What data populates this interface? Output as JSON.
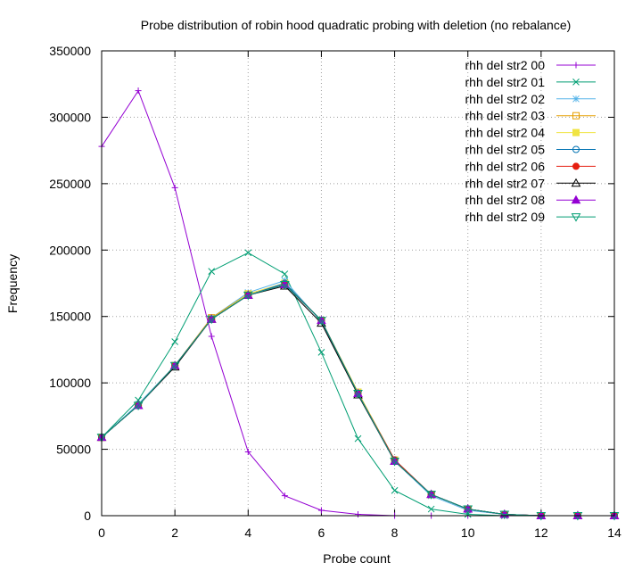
{
  "chart_data": {
    "type": "line",
    "title": "Probe distribution of robin hood quadratic probing with deletion (no rebalance)",
    "xlabel": "Probe count",
    "ylabel": "Frequency",
    "xlim": [
      0,
      14
    ],
    "ylim": [
      0,
      350000
    ],
    "xticks": [
      "0",
      "2",
      "4",
      "6",
      "8",
      "10",
      "12",
      "14"
    ],
    "yticks": [
      "0",
      "50000",
      "100000",
      "150000",
      "200000",
      "250000",
      "300000",
      "350000"
    ],
    "grid": true,
    "legend_position": "top-right",
    "x": [
      0,
      1,
      2,
      3,
      4,
      5,
      6,
      7,
      8,
      9,
      10,
      11,
      12,
      13,
      14
    ],
    "series": [
      {
        "name": "rhh del str2 00",
        "color": "#9400d3",
        "marker": "plus",
        "values": [
          278000,
          320000,
          247000,
          135000,
          48000,
          15000,
          4000,
          1000,
          0,
          0,
          0,
          0,
          0,
          0,
          0
        ]
      },
      {
        "name": "rhh del str2 01",
        "color": "#009e73",
        "marker": "cross",
        "values": [
          59000,
          87000,
          131000,
          184000,
          198000,
          182000,
          123000,
          58000,
          19000,
          5000,
          1000,
          0,
          0,
          0,
          0
        ]
      },
      {
        "name": "rhh del str2 02",
        "color": "#56b4e9",
        "marker": "star",
        "values": [
          59000,
          84000,
          113000,
          149000,
          168000,
          177000,
          146000,
          92000,
          41000,
          15000,
          4000,
          1000,
          0,
          0,
          0
        ]
      },
      {
        "name": "rhh del str2 03",
        "color": "#e69f00",
        "marker": "square",
        "values": [
          59000,
          83000,
          113000,
          149000,
          167000,
          175000,
          147000,
          93000,
          42000,
          16000,
          5000,
          1000,
          0,
          0,
          0
        ]
      },
      {
        "name": "rhh del str2 04",
        "color": "#f0e442",
        "marker": "filled-square",
        "values": [
          59000,
          83000,
          113000,
          148000,
          167000,
          175000,
          147000,
          93000,
          42000,
          16000,
          5000,
          1000,
          0,
          0,
          0
        ]
      },
      {
        "name": "rhh del str2 05",
        "color": "#0072b2",
        "marker": "circle",
        "values": [
          59000,
          83000,
          113000,
          148000,
          166000,
          175000,
          147000,
          92000,
          42000,
          16000,
          5000,
          1000,
          0,
          0,
          0
        ]
      },
      {
        "name": "rhh del str2 06",
        "color": "#e51e10",
        "marker": "filled-circle",
        "values": [
          59000,
          83000,
          113000,
          148000,
          166000,
          174000,
          147000,
          92000,
          42000,
          16000,
          5000,
          1000,
          0,
          0,
          0
        ]
      },
      {
        "name": "rhh del str2 07",
        "color": "#000000",
        "marker": "triangle",
        "values": [
          59000,
          83000,
          112000,
          148000,
          166000,
          173000,
          145000,
          91000,
          41000,
          16000,
          5000,
          1000,
          0,
          0,
          0
        ]
      },
      {
        "name": "rhh del str2 08",
        "color": "#9400d3",
        "marker": "filled-triangle",
        "values": [
          59000,
          83000,
          113000,
          148000,
          166000,
          174000,
          147000,
          92000,
          41000,
          16000,
          5000,
          1000,
          0,
          0,
          0
        ]
      },
      {
        "name": "rhh del str2 09",
        "color": "#009e73",
        "marker": "inverted-triangle",
        "values": [
          59000,
          83000,
          113000,
          148000,
          166000,
          174000,
          147000,
          92000,
          41000,
          16000,
          5000,
          1000,
          0,
          0,
          0
        ]
      }
    ]
  }
}
